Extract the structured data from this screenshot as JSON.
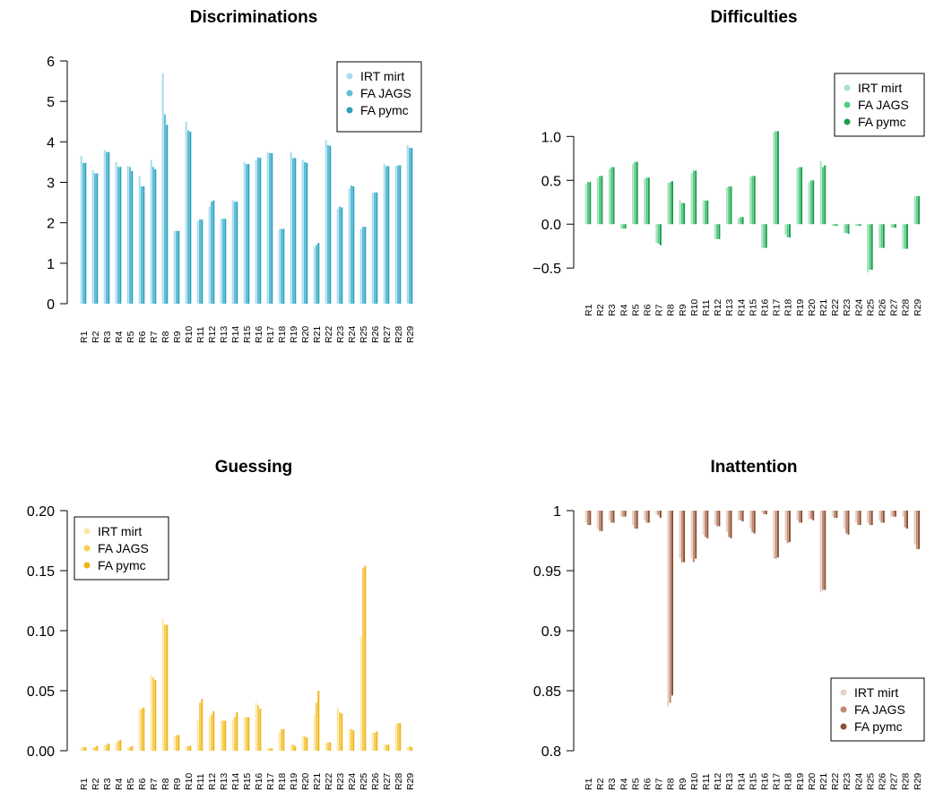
{
  "chart_data": [
    {
      "type": "bar",
      "title": "Discriminations",
      "categories": [
        "R1",
        "R2",
        "R3",
        "R4",
        "R5",
        "R6",
        "R7",
        "R8",
        "R9",
        "R10",
        "R11",
        "R12",
        "R13",
        "R14",
        "R15",
        "R16",
        "R17",
        "R18",
        "R19",
        "R20",
        "R21",
        "R22",
        "R23",
        "R24",
        "R25",
        "R26",
        "R27",
        "R28",
        "R29"
      ],
      "ylim": [
        0,
        6
      ],
      "yticks": [
        "0",
        "1",
        "2",
        "3",
        "4",
        "5",
        "6"
      ],
      "legend_position": "top-right",
      "colors": [
        "#a9dcee",
        "#5cc0d8",
        "#2c9fbb"
      ],
      "series": [
        {
          "name": "IRT mirt",
          "values": [
            3.65,
            3.3,
            3.8,
            3.5,
            3.4,
            3.15,
            3.55,
            5.7,
            1.8,
            4.5,
            2.05,
            2.4,
            2.1,
            2.55,
            3.5,
            3.55,
            3.75,
            1.85,
            3.75,
            3.55,
            1.4,
            4.05,
            2.35,
            2.85,
            1.85,
            2.75,
            3.45,
            3.4,
            3.92
          ]
        },
        {
          "name": "FA JAGS",
          "values": [
            3.48,
            3.22,
            3.75,
            3.38,
            3.38,
            2.9,
            3.38,
            4.68,
            1.8,
            4.28,
            2.08,
            2.52,
            2.1,
            2.52,
            3.45,
            3.62,
            3.72,
            1.85,
            3.6,
            3.5,
            1.45,
            3.92,
            2.4,
            2.92,
            1.9,
            2.75,
            3.4,
            3.42,
            3.85
          ]
        },
        {
          "name": "FA pymc",
          "values": [
            3.48,
            3.22,
            3.75,
            3.38,
            3.28,
            2.9,
            3.32,
            4.42,
            1.8,
            4.25,
            2.08,
            2.55,
            2.1,
            2.52,
            3.45,
            3.6,
            3.72,
            1.85,
            3.6,
            3.48,
            1.5,
            3.9,
            2.38,
            2.9,
            1.9,
            2.75,
            3.4,
            3.42,
            3.85
          ]
        }
      ]
    },
    {
      "type": "bar",
      "title": "Difficulties",
      "categories": [
        "R1",
        "R2",
        "R3",
        "R4",
        "R5",
        "R6",
        "R7",
        "R8",
        "R9",
        "R10",
        "R11",
        "R12",
        "R13",
        "R14",
        "R15",
        "R16",
        "R17",
        "R18",
        "R19",
        "R20",
        "R21",
        "R22",
        "R23",
        "R24",
        "R25",
        "R26",
        "R27",
        "R28",
        "R29"
      ],
      "ylim": [
        -0.6,
        1.35
      ],
      "yticks": [
        "−0.5",
        "0.0",
        "0.5",
        "1.0"
      ],
      "legend_position": "top-right",
      "colors": [
        "#a8e4c0",
        "#52cc80",
        "#1f9e4e"
      ],
      "series": [
        {
          "name": "IRT mirt",
          "values": [
            0.46,
            0.53,
            0.63,
            -0.05,
            0.69,
            0.52,
            -0.21,
            0.47,
            0.27,
            0.58,
            0.27,
            -0.17,
            0.42,
            0.07,
            0.54,
            -0.27,
            1.05,
            -0.12,
            0.64,
            0.48,
            0.72,
            -0.02,
            -0.1,
            -0.02,
            -0.55,
            -0.27,
            -0.04,
            -0.28,
            0.32
          ]
        },
        {
          "name": "FA JAGS",
          "values": [
            0.48,
            0.55,
            0.65,
            -0.05,
            0.71,
            0.53,
            -0.22,
            0.48,
            0.24,
            0.61,
            0.27,
            -0.17,
            0.43,
            0.08,
            0.55,
            -0.27,
            1.06,
            -0.15,
            0.65,
            0.5,
            0.65,
            -0.02,
            -0.1,
            -0.02,
            -0.52,
            -0.27,
            -0.04,
            -0.28,
            0.32
          ]
        },
        {
          "name": "FA pymc",
          "values": [
            0.48,
            0.55,
            0.65,
            -0.05,
            0.71,
            0.53,
            -0.24,
            0.49,
            0.24,
            0.61,
            0.27,
            -0.17,
            0.43,
            0.08,
            0.55,
            -0.27,
            1.06,
            -0.15,
            0.65,
            0.5,
            0.67,
            -0.02,
            -0.11,
            -0.02,
            -0.52,
            -0.27,
            -0.04,
            -0.28,
            0.32
          ]
        }
      ]
    },
    {
      "type": "bar",
      "title": "Guessing",
      "categories": [
        "R1",
        "R2",
        "R3",
        "R4",
        "R5",
        "R6",
        "R7",
        "R8",
        "R9",
        "R10",
        "R11",
        "R12",
        "R13",
        "R14",
        "R15",
        "R16",
        "R17",
        "R18",
        "R19",
        "R20",
        "R21",
        "R22",
        "R23",
        "R24",
        "R25",
        "R26",
        "R27",
        "R28",
        "R29"
      ],
      "ylim": [
        0,
        0.2
      ],
      "yticks": [
        "0.00",
        "0.05",
        "0.10",
        "0.15",
        "0.20"
      ],
      "legend_position": "top-left",
      "colors": [
        "#fbe7a6",
        "#f8cf52",
        "#eeb41a"
      ],
      "series": [
        {
          "name": "IRT mirt",
          "values": [
            0.002,
            0.003,
            0.005,
            0.007,
            0.003,
            0.034,
            0.063,
            0.11,
            0.012,
            0.004,
            0.025,
            0.028,
            0.025,
            0.026,
            0.028,
            0.04,
            0.002,
            0.015,
            0.005,
            0.012,
            0.03,
            0.006,
            0.036,
            0.018,
            0.095,
            0.015,
            0.005,
            0.022,
            0.003
          ]
        },
        {
          "name": "FA JAGS",
          "values": [
            0.003,
            0.003,
            0.005,
            0.008,
            0.003,
            0.035,
            0.061,
            0.105,
            0.013,
            0.004,
            0.04,
            0.03,
            0.025,
            0.028,
            0.028,
            0.038,
            0.002,
            0.018,
            0.005,
            0.012,
            0.04,
            0.007,
            0.032,
            0.018,
            0.152,
            0.015,
            0.005,
            0.023,
            0.004
          ]
        },
        {
          "name": "FA pymc",
          "values": [
            0.003,
            0.004,
            0.006,
            0.009,
            0.004,
            0.036,
            0.059,
            0.105,
            0.013,
            0.004,
            0.043,
            0.033,
            0.025,
            0.032,
            0.028,
            0.035,
            0.002,
            0.018,
            0.004,
            0.011,
            0.05,
            0.007,
            0.031,
            0.017,
            0.154,
            0.016,
            0.005,
            0.023,
            0.003
          ]
        }
      ]
    },
    {
      "type": "bar",
      "title": "Inattention",
      "categories": [
        "R1",
        "R2",
        "R3",
        "R4",
        "R5",
        "R6",
        "R7",
        "R8",
        "R9",
        "R10",
        "R11",
        "R12",
        "R13",
        "R14",
        "R15",
        "R16",
        "R17",
        "R18",
        "R19",
        "R20",
        "R21",
        "R22",
        "R23",
        "R24",
        "R25",
        "R26",
        "R27",
        "R28",
        "R29"
      ],
      "ylim": [
        0.8,
        1.0
      ],
      "yticks": [
        "0.8",
        "0.85",
        "0.9",
        "0.95",
        "1"
      ],
      "legend_position": "bottom-right",
      "colors": [
        "#e8d0c4",
        "#c28a70",
        "#8a5038"
      ],
      "series": [
        {
          "name": "IRT mirt",
          "values": [
            0.99,
            0.985,
            0.992,
            0.995,
            0.988,
            0.992,
            0.997,
            0.837,
            0.96,
            0.96,
            0.98,
            0.988,
            0.982,
            0.992,
            0.985,
            0.998,
            0.96,
            0.975,
            0.992,
            0.993,
            0.932,
            0.995,
            0.985,
            0.99,
            0.99,
            0.992,
            0.995,
            0.995,
            0.972
          ]
        },
        {
          "name": "FA JAGS",
          "values": [
            0.988,
            0.983,
            0.99,
            0.995,
            0.985,
            0.99,
            0.996,
            0.84,
            0.957,
            0.957,
            0.978,
            0.987,
            0.978,
            0.992,
            0.982,
            0.997,
            0.96,
            0.973,
            0.99,
            0.993,
            0.934,
            0.994,
            0.981,
            0.988,
            0.988,
            0.99,
            0.995,
            0.986,
            0.968
          ]
        },
        {
          "name": "FA pymc",
          "values": [
            0.988,
            0.983,
            0.99,
            0.995,
            0.985,
            0.99,
            0.994,
            0.846,
            0.957,
            0.96,
            0.977,
            0.987,
            0.977,
            0.991,
            0.981,
            0.997,
            0.961,
            0.974,
            0.99,
            0.992,
            0.934,
            0.994,
            0.98,
            0.988,
            0.988,
            0.99,
            0.995,
            0.985,
            0.968
          ]
        }
      ]
    }
  ]
}
